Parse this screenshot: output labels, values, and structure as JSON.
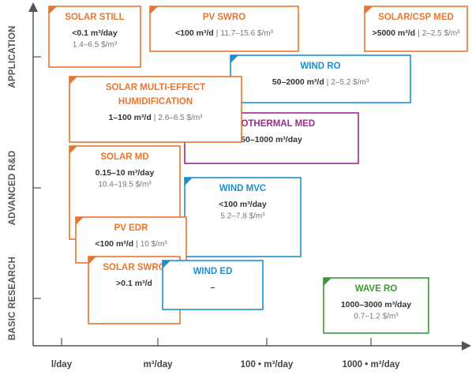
{
  "axes": {
    "y_labels": [
      "APPLICATION",
      "ADVANCED R&D",
      "BASIC RESEARCH"
    ],
    "x_labels": [
      "l/day",
      "m³/day",
      "100 • m³/day",
      "1000 • m³/day"
    ]
  },
  "boxes": [
    {
      "title": [
        "SOLAR STILL"
      ],
      "capacity": "<0.1 m³/day",
      "cost": "1.4–6.5 $/m³",
      "color": "#e8762d",
      "inline": false
    },
    {
      "title": [
        "PV SWRO"
      ],
      "capacity": "<100 m³/d",
      "cost": "11.7–15.6 $/m³",
      "color": "#e8762d",
      "inline": true
    },
    {
      "title": [
        "SOLAR/CSP MED"
      ],
      "capacity": ">5000 m³/d",
      "cost": "2–2.5 $/m³",
      "color": "#e8762d",
      "inline": true
    },
    {
      "title": [
        "WIND RO"
      ],
      "capacity": "50–2000 m³/d",
      "cost": "2–5.2 $/m³",
      "color": "#1b8fd0",
      "inline": true
    },
    {
      "title": [
        "GEOTHERMAL MED"
      ],
      "capacity": "50–1000 m³/day",
      "color": "#9b2a8a",
      "inline": false
    },
    {
      "title": [
        "SOLAR MULTI-EFFECT",
        "HUMIDIFICATION"
      ],
      "capacity": "1–100 m³/d",
      "cost": "2.6–6.5 $/m³",
      "color": "#e8762d",
      "inline": true
    },
    {
      "title": [
        "SOLAR MD"
      ],
      "capacity": "0.15–10 m³/day",
      "cost": "10.4–19.5 $/m³",
      "color": "#e8762d",
      "inline": false
    },
    {
      "title": [
        "WIND MVC"
      ],
      "capacity": "<100 m³/day",
      "cost": "5.2–7.8 $/m³",
      "color": "#1b8fd0",
      "inline": false
    },
    {
      "title": [
        "PV EDR"
      ],
      "capacity": "<100 m³/d",
      "cost": "10 $/m³",
      "color": "#e8762d",
      "inline": true
    },
    {
      "title": [
        "SOLAR SWRO"
      ],
      "capacity": ">0.1 m³/d",
      "color": "#e8762d",
      "inline": false
    },
    {
      "title": [
        "WIND ED"
      ],
      "capacity": "–",
      "color": "#1b8fd0",
      "inline": false
    },
    {
      "title": [
        "WAVE RO"
      ],
      "capacity": "1000–3000 m³/day",
      "cost": "0.7–1.2 $/m³",
      "color": "#3a9a3a",
      "inline": false
    }
  ]
}
